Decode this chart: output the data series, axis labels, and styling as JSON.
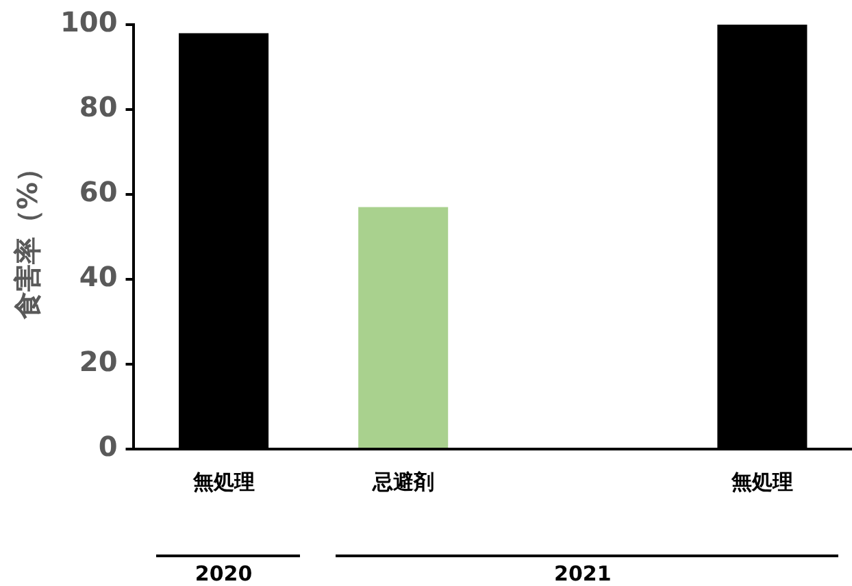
{
  "chart_data": {
    "type": "bar",
    "ylabel": "食害率（%）",
    "categories": [
      "無処理",
      "忌避剤",
      null,
      "無処理"
    ],
    "values": [
      98,
      57,
      0,
      100
    ],
    "colors": [
      "#000000",
      "#a9d18e",
      "#000000",
      "#000000"
    ],
    "ylim": [
      0,
      100
    ],
    "yticks": [
      0,
      20,
      40,
      60,
      80,
      100
    ],
    "grid": false,
    "legend": false,
    "annotations": [
      "2020",
      "2021"
    ]
  }
}
